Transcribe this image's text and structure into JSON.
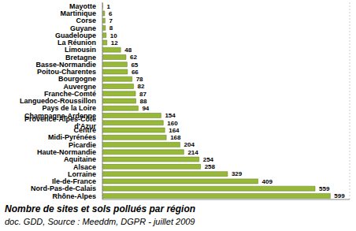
{
  "chart_data": {
    "type": "bar",
    "orientation": "horizontal",
    "title": "Nombre de sites et sols pollués par région",
    "subtitle": "doc. GDD, Source : Meeddm, DGPR - juillet 2009",
    "categories": [
      "Mayotte",
      "Martinique",
      "Corse",
      "Guyane",
      "Guadeloupe",
      "La Réunion",
      "Limousin",
      "Bretagne",
      "Basse-Normandie",
      "Poitou-Charentes",
      "Bourgogne",
      "Auvergne",
      "Franche-Comté",
      "Languedoc-Roussillon",
      "Pays de la Loire",
      "Champagne-Ardenne",
      "Provence-Alpes-Côte d'Azur",
      "Centre",
      "Midi-Pyrénées",
      "Picardie",
      "Haute-Normandie",
      "Aquitaine",
      "Alsace",
      "Lorraine",
      "Ile-de-France",
      "Nord-Pas-de-Calais",
      "Rhône-Alpes"
    ],
    "values": [
      1,
      6,
      7,
      8,
      10,
      12,
      48,
      62,
      65,
      66,
      78,
      82,
      87,
      88,
      94,
      154,
      160,
      164,
      168,
      204,
      214,
      254,
      258,
      329,
      409,
      559,
      599
    ],
    "color": "#98b83a",
    "xlim": [
      0,
      650
    ],
    "xticks": [
      0,
      100,
      200,
      300,
      400,
      500,
      600
    ],
    "grid": true,
    "data_labels": true,
    "tick_labels": "y"
  }
}
